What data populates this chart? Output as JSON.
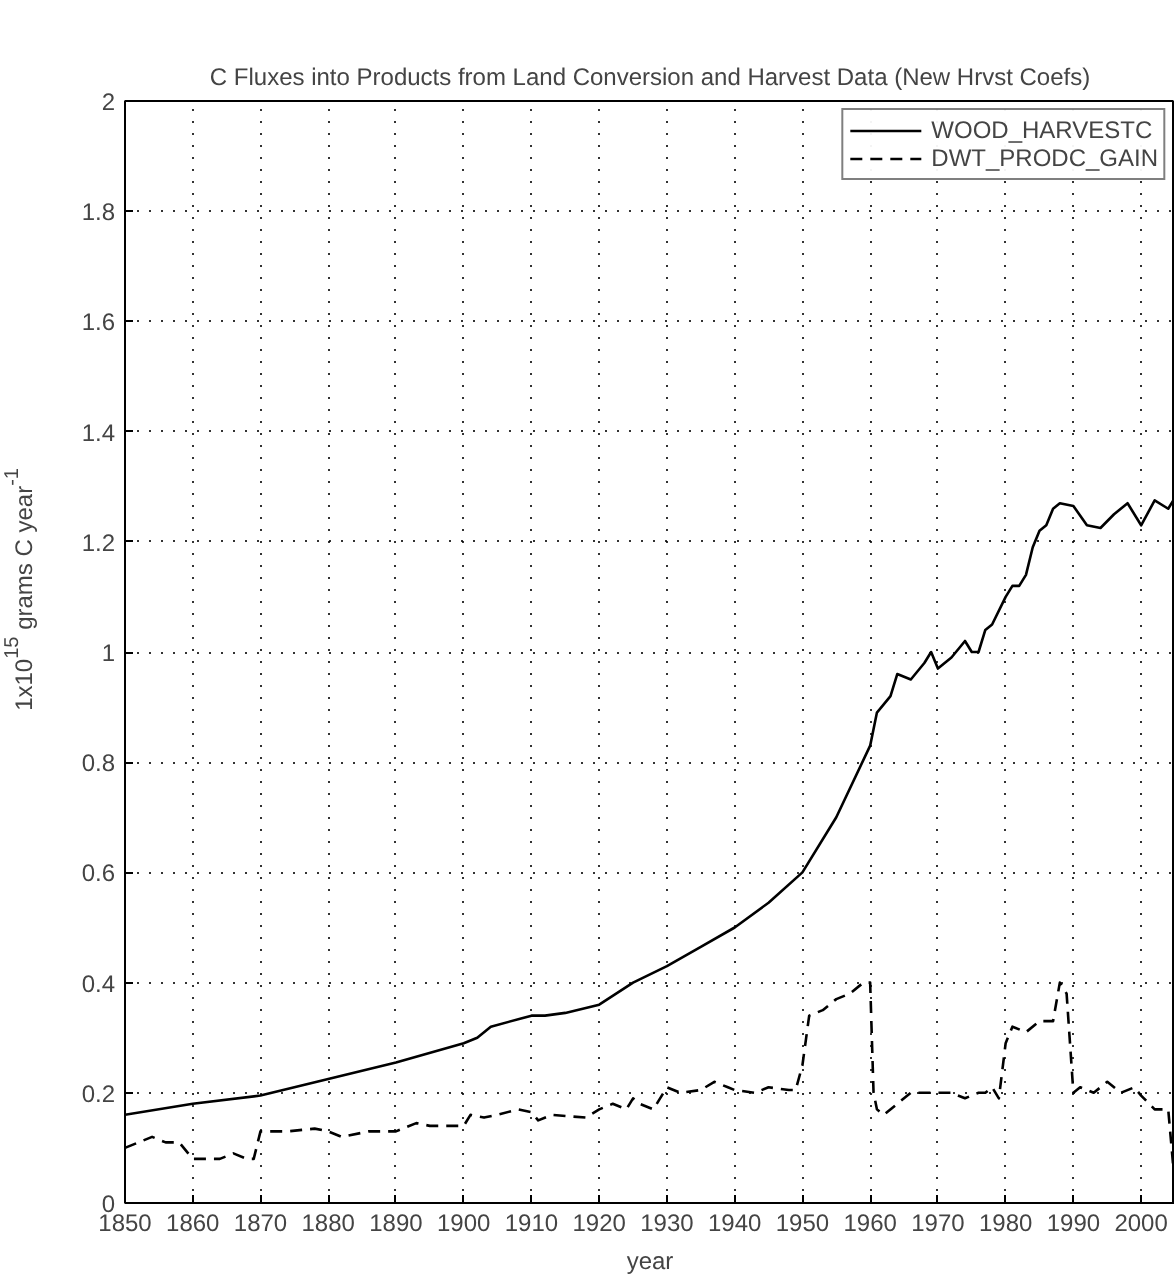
{
  "chart_data": {
    "type": "line",
    "title": "C Fluxes into Products from Land Conversion and Harvest Data (New Hrvst Coefs)",
    "xlabel": "year",
    "ylabel": "1x10$^{15}$ grams C year$^{-1}$",
    "xlim": [
      1850,
      2005
    ],
    "xticks": [
      1850,
      1860,
      1870,
      1880,
      1890,
      1900,
      1910,
      1920,
      1930,
      1940,
      1950,
      1960,
      1970,
      1980,
      1990,
      2000
    ],
    "ylim": [
      0,
      2
    ],
    "yticks": [
      0,
      0.2,
      0.4,
      0.6,
      0.8,
      1,
      1.2,
      1.4,
      1.6,
      1.8,
      2
    ],
    "grid": true,
    "legend": "top right",
    "marker": "none",
    "series": [
      {
        "name": "WOOD_HARVESTC",
        "color": "#000000",
        "line_style": "solid",
        "x": [
          1850,
          1860,
          1870,
          1880,
          1890,
          1900,
          1902,
          1904,
          1910,
          1912,
          1915,
          1920,
          1925,
          1930,
          1935,
          1940,
          1945,
          1950,
          1955,
          1960,
          1961,
          1963,
          1964,
          1966,
          1968,
          1969,
          1970,
          1972,
          1974,
          1975,
          1976,
          1977,
          1978,
          1980,
          1981,
          1982,
          1983,
          1984,
          1985,
          1986,
          1987,
          1988,
          1990,
          1992,
          1994,
          1996,
          1998,
          2000,
          2002,
          2004,
          2005
        ],
        "values": [
          0.16,
          0.18,
          0.195,
          0.225,
          0.255,
          0.29,
          0.3,
          0.32,
          0.34,
          0.34,
          0.345,
          0.36,
          0.4,
          0.43,
          0.465,
          0.5,
          0.545,
          0.6,
          0.7,
          0.83,
          0.89,
          0.92,
          0.96,
          0.95,
          0.98,
          1.0,
          0.97,
          0.99,
          1.02,
          1.0,
          1.0,
          1.04,
          1.05,
          1.1,
          1.12,
          1.12,
          1.14,
          1.19,
          1.22,
          1.23,
          1.26,
          1.27,
          1.265,
          1.23,
          1.225,
          1.25,
          1.27,
          1.23,
          1.275,
          1.26,
          1.28
        ]
      },
      {
        "name": "DWT_PRODC_GAIN",
        "color": "#000000",
        "line_style": "dashed",
        "x": [
          1850,
          1852,
          1854,
          1856,
          1858,
          1860,
          1864,
          1866,
          1868,
          1869,
          1870,
          1874,
          1878,
          1880,
          1882,
          1886,
          1890,
          1893,
          1895,
          1900,
          1901,
          1903,
          1905,
          1908,
          1910,
          1911,
          1913,
          1918,
          1920,
          1922,
          1924,
          1925,
          1926,
          1928,
          1930,
          1932,
          1935,
          1937,
          1939,
          1940,
          1943,
          1945,
          1948,
          1949,
          1950,
          1951,
          1953,
          1955,
          1957,
          1959,
          1960,
          1960.5,
          1961,
          1962,
          1964,
          1966,
          1968,
          1970,
          1972,
          1974,
          1976,
          1977,
          1978,
          1979,
          1980,
          1981,
          1983,
          1985,
          1987,
          1988,
          1989,
          1990,
          1991,
          1993,
          1995,
          1997,
          1999,
          2000,
          2002,
          2004,
          2005
        ],
        "values": [
          0.1,
          0.11,
          0.12,
          0.11,
          0.11,
          0.08,
          0.08,
          0.09,
          0.08,
          0.08,
          0.13,
          0.13,
          0.135,
          0.13,
          0.12,
          0.13,
          0.13,
          0.145,
          0.14,
          0.14,
          0.16,
          0.155,
          0.16,
          0.17,
          0.165,
          0.15,
          0.16,
          0.155,
          0.17,
          0.18,
          0.17,
          0.19,
          0.18,
          0.17,
          0.21,
          0.2,
          0.205,
          0.22,
          0.21,
          0.205,
          0.2,
          0.21,
          0.205,
          0.205,
          0.25,
          0.34,
          0.35,
          0.37,
          0.38,
          0.4,
          0.4,
          0.2,
          0.17,
          0.16,
          0.18,
          0.2,
          0.2,
          0.2,
          0.2,
          0.19,
          0.2,
          0.2,
          0.21,
          0.19,
          0.29,
          0.32,
          0.31,
          0.33,
          0.33,
          0.4,
          0.38,
          0.2,
          0.21,
          0.2,
          0.22,
          0.2,
          0.21,
          0.195,
          0.17,
          0.17,
          0.03
        ]
      }
    ]
  }
}
